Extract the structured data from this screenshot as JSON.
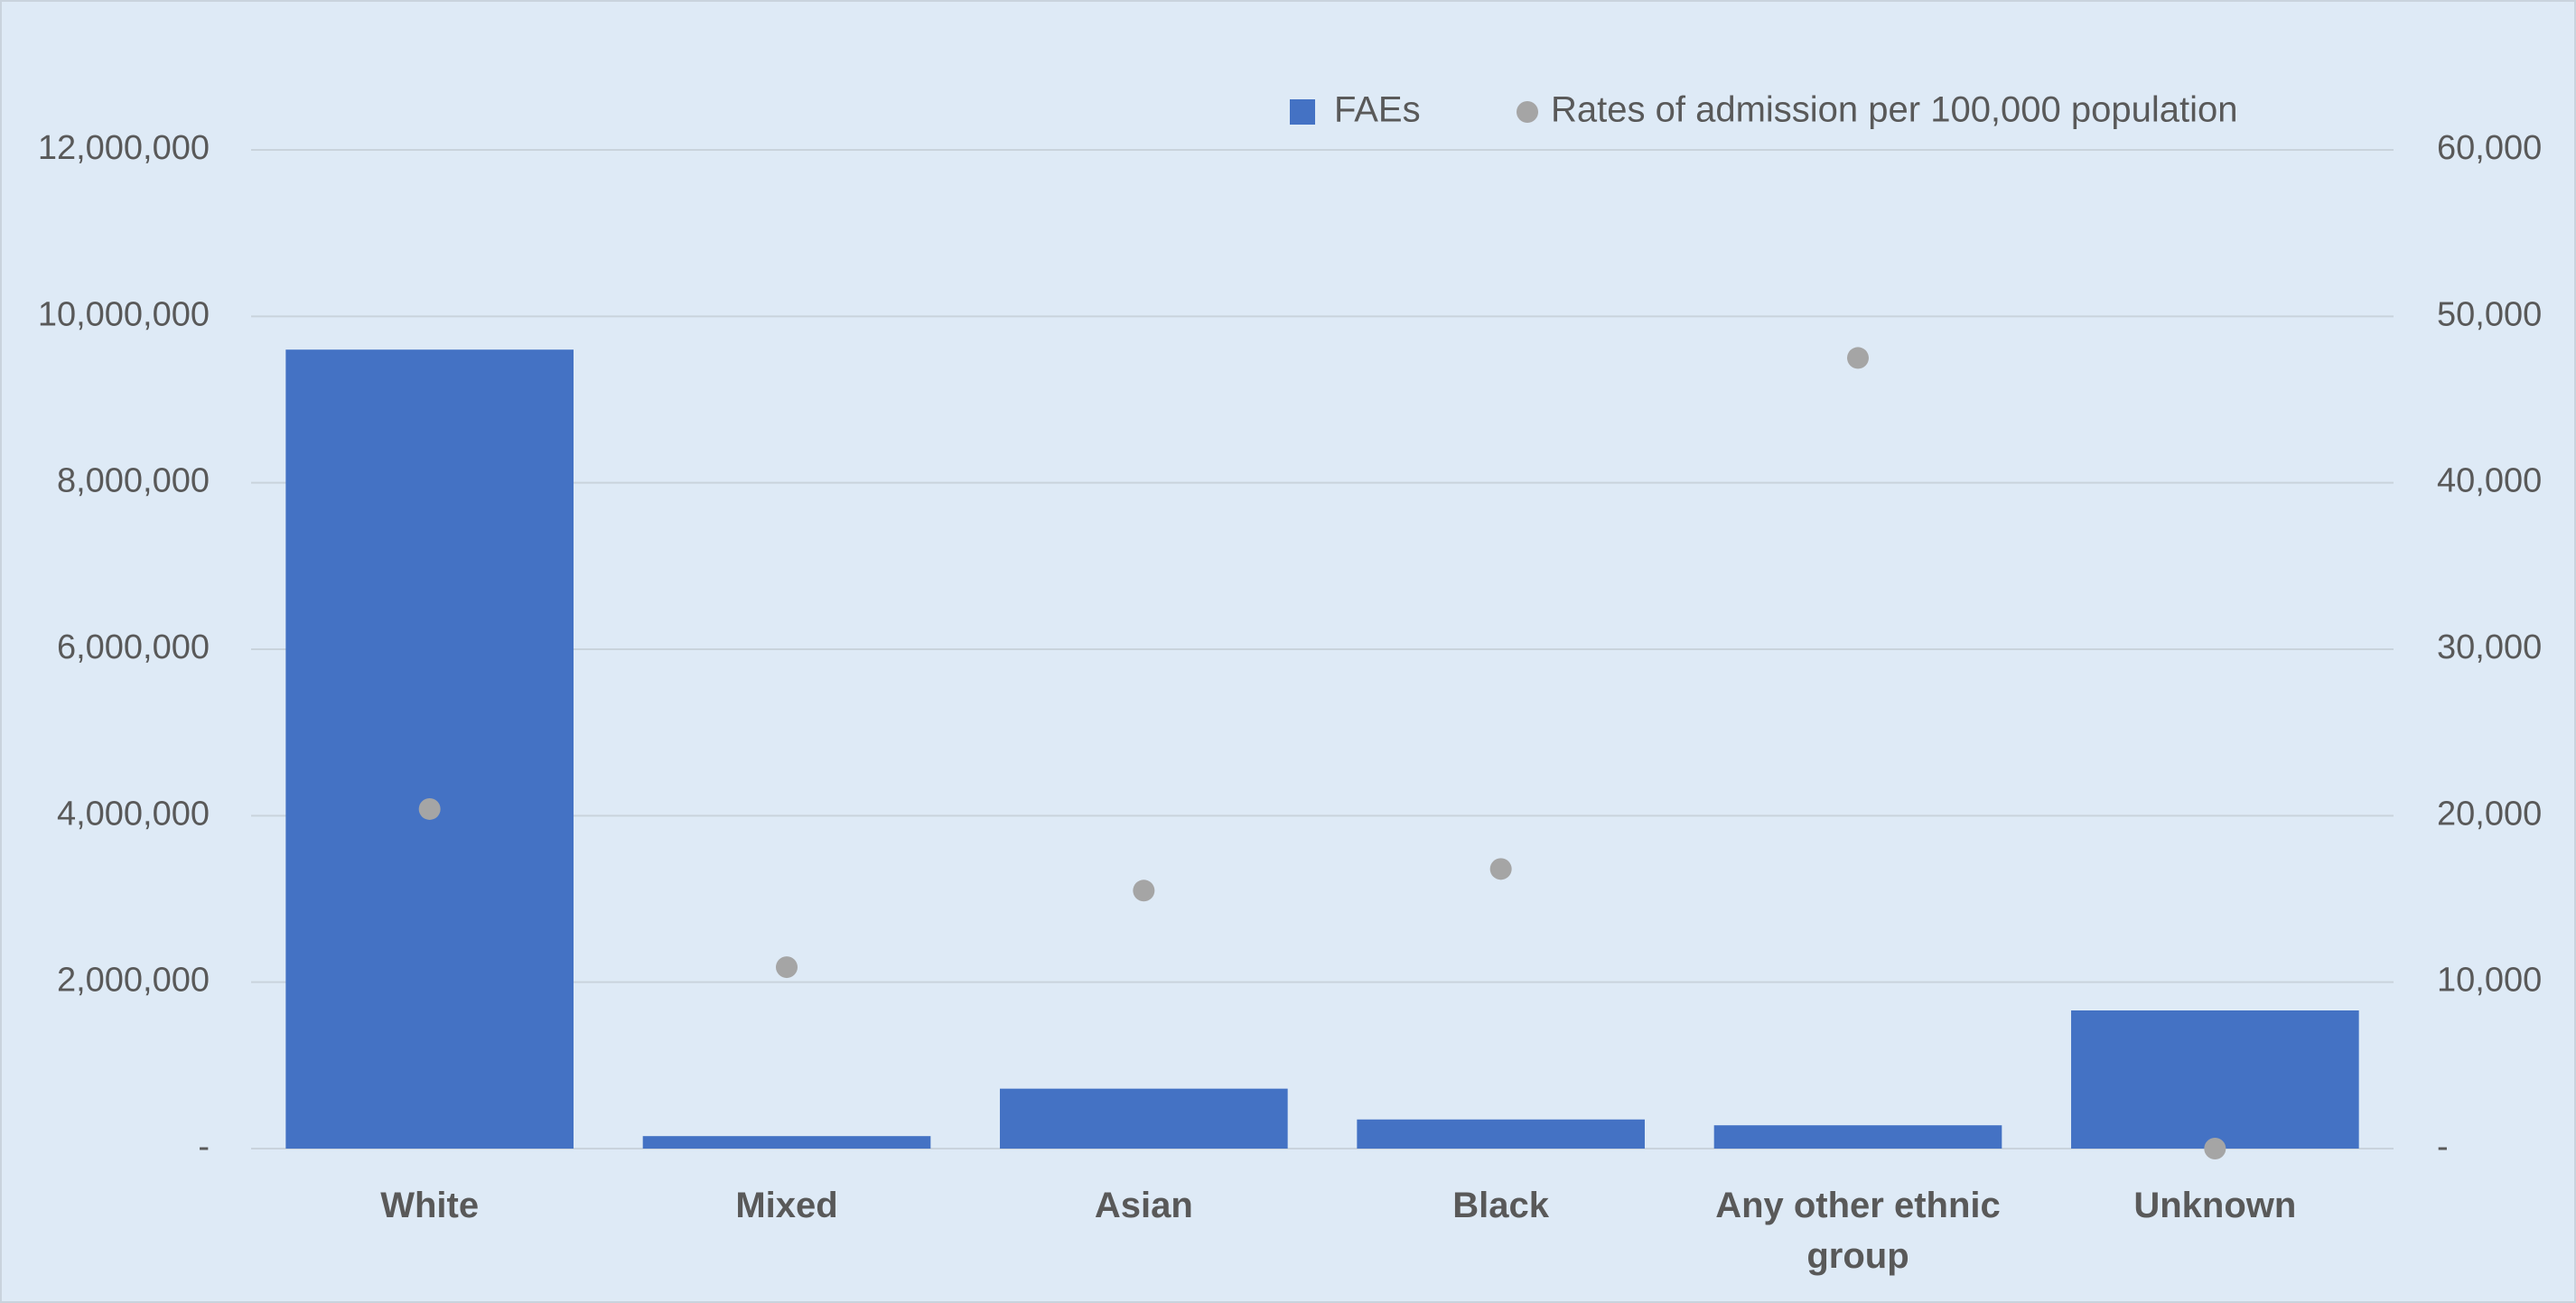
{
  "chart_data": {
    "type": "combo",
    "categories": [
      "White",
      "Mixed",
      "Asian",
      "Black",
      "Any other ethnic group",
      "Unknown"
    ],
    "series": [
      {
        "name": "FAEs",
        "type": "bar",
        "color": "#4472c4",
        "values": [
          9600000,
          150000,
          720000,
          350000,
          280000,
          1660000
        ]
      },
      {
        "name": "Rates of admission per 100,000 population",
        "type": "scatter",
        "axis": "y2",
        "color": "#a5a5a5",
        "values": [
          20400,
          10900,
          15500,
          16800,
          47500,
          0
        ]
      }
    ],
    "ylim": [
      0,
      12000000
    ],
    "yticks": [
      {
        "value": 0,
        "label": "-"
      },
      {
        "value": 2000000,
        "label": "2,000,000"
      },
      {
        "value": 4000000,
        "label": "4,000,000"
      },
      {
        "value": 6000000,
        "label": "6,000,000"
      },
      {
        "value": 8000000,
        "label": "8,000,000"
      },
      {
        "value": 10000000,
        "label": "10,000,000"
      },
      {
        "value": 12000000,
        "label": "12,000,000"
      }
    ],
    "y2lim": [
      0,
      60000
    ],
    "y2ticks": [
      {
        "value": 0,
        "label": "-"
      },
      {
        "value": 10000,
        "label": "10,000"
      },
      {
        "value": 20000,
        "label": "20,000"
      },
      {
        "value": 30000,
        "label": "30,000"
      },
      {
        "value": 40000,
        "label": "40,000"
      },
      {
        "value": 50000,
        "label": "50,000"
      },
      {
        "value": 60000,
        "label": "60,000"
      }
    ],
    "grid": true,
    "legend": "top-right"
  }
}
